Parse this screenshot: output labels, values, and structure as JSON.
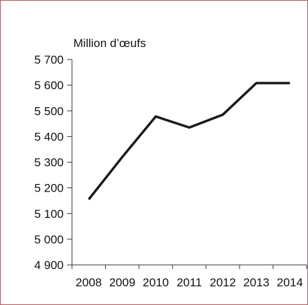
{
  "chart_data": {
    "type": "line",
    "unit_label": "Million d’œufs",
    "categories": [
      "2008",
      "2009",
      "2010",
      "2011",
      "2012",
      "2013",
      "2014"
    ],
    "values": [
      5155,
      5320,
      5478,
      5435,
      5485,
      5608,
      5608
    ],
    "ylim": [
      4900,
      5700
    ],
    "yticks": [
      4900,
      5000,
      5100,
      5200,
      5300,
      5400,
      5500,
      5600,
      5700
    ],
    "ytick_labels": [
      "4 900",
      "5 000",
      "5 100",
      "5 200",
      "5 300",
      "5 400",
      "5 500",
      "5 600",
      "5 700"
    ],
    "grid": false,
    "line_color": "#1a1a1a",
    "border_color": "#b25a5a"
  }
}
